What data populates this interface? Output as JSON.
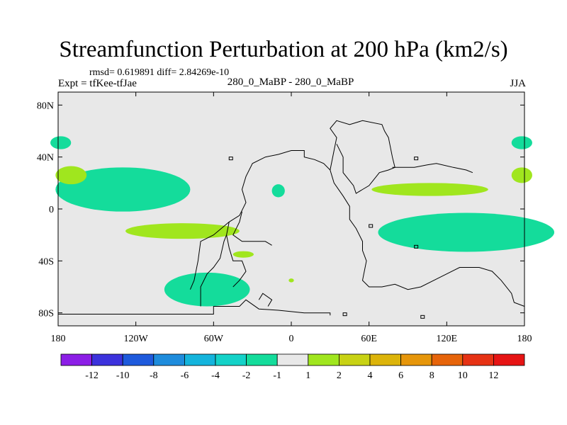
{
  "title": "Streamfunction Perturbation at 200 hPa (km2/s)",
  "stats_text": "rmsd= 0.619891 diff= 2.84269e-10",
  "experiment_text": "Expt = tfKee-tfJae",
  "center_text": "280_0_MaBP - 280_0_MaBP",
  "season_text": "JJA",
  "chart_data": {
    "type": "heatmap",
    "projection": "cylindrical-equidistant",
    "xlim": [
      -180,
      180
    ],
    "ylim": [
      -90,
      90
    ],
    "x_ticks": [
      -180,
      -120,
      -60,
      0,
      60,
      120,
      180
    ],
    "x_tick_labels": [
      "180",
      "120W",
      "60W",
      "0",
      "60E",
      "120E",
      "180"
    ],
    "y_ticks": [
      80,
      40,
      0,
      -40,
      -80
    ],
    "y_tick_labels": [
      "80N",
      "40N",
      "0",
      "40S",
      "80S"
    ],
    "background_color": "#e8e8e8",
    "colorbar": {
      "levels": [
        "-12",
        "-10",
        "-8",
        "-6",
        "-4",
        "-2",
        "-1",
        "1",
        "2",
        "4",
        "6",
        "8",
        "10",
        "12"
      ],
      "colors": [
        "#8c1ee6",
        "#3c32dc",
        "#1e5adc",
        "#1e8cdc",
        "#14b4dc",
        "#14d2c8",
        "#14dc9b",
        "#e8e8e8",
        "#a0e61e",
        "#c8d214",
        "#dcb40a",
        "#e6960a",
        "#e6640a",
        "#e63214",
        "#e61414"
      ]
    },
    "regions": [
      {
        "label": "-2 to -1",
        "lon": -130,
        "lat": 15,
        "dlon": 52,
        "dlat": 17
      },
      {
        "label": "-2 to -1",
        "lon": 135,
        "lat": -18,
        "dlon": 68,
        "dlat": 15
      },
      {
        "label": "-2 to -1",
        "lon": -65,
        "lat": -62,
        "dlon": 33,
        "dlat": 13
      },
      {
        "label": "-2 to -1",
        "lon": -178,
        "lat": 51,
        "dlon": 8,
        "dlat": 5
      },
      {
        "label": "-2 to -1",
        "lon": 178,
        "lat": 51,
        "dlon": 8,
        "dlat": 5
      },
      {
        "label": "-2 to -1",
        "lon": -10,
        "lat": 14,
        "dlon": 5,
        "dlat": 5
      },
      {
        "label": "1 to 2",
        "lon": -84,
        "lat": -17,
        "dlon": 44,
        "dlat": 6
      },
      {
        "label": "1 to 2",
        "lon": 107,
        "lat": 15,
        "dlon": 45,
        "dlat": 5
      },
      {
        "label": "1 to 2",
        "lon": -170,
        "lat": 26,
        "dlon": 12,
        "dlat": 7
      },
      {
        "label": "1 to 2",
        "lon": 178,
        "lat": 26,
        "dlon": 8,
        "dlat": 6
      },
      {
        "label": "1 to 2",
        "lon": -37,
        "lat": -35,
        "dlon": 8,
        "dlat": 2.5
      },
      {
        "label": "1 to 2",
        "lon": 0,
        "lat": -55,
        "dlon": 2,
        "dlat": 1.5
      }
    ]
  }
}
